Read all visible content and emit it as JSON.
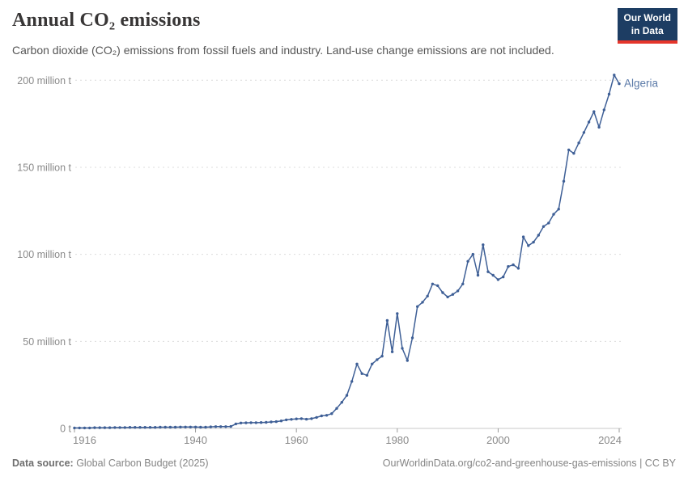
{
  "header": {
    "title": "Annual CO₂ emissions",
    "subtitle": "Carbon dioxide (CO₂) emissions from fossil fuels and industry. Land-use change emissions are not included.",
    "logo": {
      "line1": "Our World",
      "line2": "in Data"
    }
  },
  "footer": {
    "source_label": "Data source:",
    "source_value": " Global Carbon Budget (2025)",
    "link": "OurWorldinData.org/co2-and-greenhouse-gas-emissions | CC BY"
  },
  "colors": {
    "line": "#3e5f96",
    "entity_label": "#5b7aa8",
    "grid": "#dcdcdc",
    "axis": "#c9c9c9",
    "tick": "#999999",
    "tick_label": "#8a8a8a",
    "logo_bg": "#1d3d63",
    "logo_accent": "#e5352b"
  },
  "chart_data": {
    "type": "line",
    "title": "Annual CO₂ emissions",
    "unit": "million t",
    "ylim": [
      0,
      200
    ],
    "grid": "dashed-horizontal",
    "legend_position": "end-of-line-label",
    "x_ticks": [
      1916,
      1940,
      1960,
      1980,
      2000,
      2024
    ],
    "y_ticks": [
      {
        "value": 0,
        "label": "0 t"
      },
      {
        "value": 50,
        "label": "50 million t"
      },
      {
        "value": 100,
        "label": "100 million t"
      },
      {
        "value": 150,
        "label": "150 million t"
      },
      {
        "value": 200,
        "label": "200 million t"
      }
    ],
    "x": [
      1916,
      1917,
      1918,
      1919,
      1920,
      1921,
      1922,
      1923,
      1924,
      1925,
      1926,
      1927,
      1928,
      1929,
      1930,
      1931,
      1932,
      1933,
      1934,
      1935,
      1936,
      1937,
      1938,
      1939,
      1940,
      1941,
      1942,
      1943,
      1944,
      1945,
      1946,
      1947,
      1948,
      1949,
      1950,
      1951,
      1952,
      1953,
      1954,
      1955,
      1956,
      1957,
      1958,
      1959,
      1960,
      1961,
      1962,
      1963,
      1964,
      1965,
      1966,
      1967,
      1968,
      1969,
      1970,
      1971,
      1972,
      1973,
      1974,
      1975,
      1976,
      1977,
      1978,
      1979,
      1980,
      1981,
      1982,
      1983,
      1984,
      1985,
      1986,
      1987,
      1988,
      1989,
      1990,
      1991,
      1992,
      1993,
      1994,
      1995,
      1996,
      1997,
      1998,
      1999,
      2000,
      2001,
      2002,
      2003,
      2004,
      2005,
      2006,
      2007,
      2008,
      2009,
      2010,
      2011,
      2012,
      2013,
      2014,
      2015,
      2016,
      2017,
      2018,
      2019,
      2020,
      2021,
      2022,
      2023,
      2024
    ],
    "series": [
      {
        "name": "Algeria",
        "color": "#3e5f96",
        "values": [
          0.3,
          0.3,
          0.3,
          0.3,
          0.4,
          0.4,
          0.4,
          0.4,
          0.5,
          0.5,
          0.5,
          0.6,
          0.6,
          0.6,
          0.6,
          0.6,
          0.6,
          0.7,
          0.7,
          0.7,
          0.7,
          0.8,
          0.8,
          0.8,
          0.8,
          0.7,
          0.7,
          0.9,
          1.0,
          1.0,
          1.0,
          1.1,
          2.6,
          3.1,
          3.2,
          3.3,
          3.3,
          3.4,
          3.5,
          3.7,
          3.9,
          4.3,
          4.9,
          5.2,
          5.5,
          5.6,
          5.3,
          5.6,
          6.3,
          7.2,
          7.5,
          8.5,
          11.5,
          15,
          19,
          27,
          37,
          31.5,
          30.5,
          37,
          39.5,
          41.5,
          62,
          44,
          66,
          46,
          39,
          52,
          70,
          72.5,
          76,
          83,
          82,
          78,
          75.5,
          77,
          79,
          83,
          96,
          100,
          88,
          105.5,
          90,
          88,
          85.5,
          87,
          93,
          94,
          92,
          110,
          105,
          107,
          111,
          116,
          118,
          123,
          126,
          142,
          160,
          158,
          164,
          170,
          176,
          182,
          173,
          183,
          192,
          203,
          198
        ]
      }
    ]
  }
}
